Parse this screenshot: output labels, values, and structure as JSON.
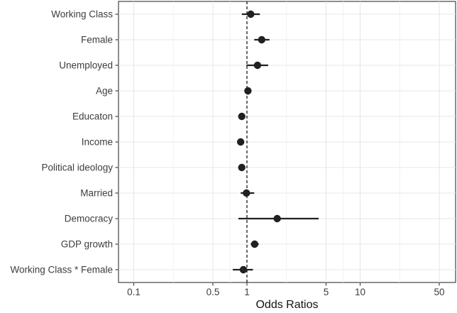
{
  "chart_data": {
    "type": "forest",
    "title": "",
    "xlabel": "Odds Ratios",
    "x_scale": "log10",
    "x_ticks": [
      0.1,
      0.5,
      1,
      5,
      10,
      50
    ],
    "x_tick_labels": [
      "0.1",
      "0.5",
      "1",
      "5",
      "10",
      "50"
    ],
    "x_minor_ticks": [
      0.2236,
      0.7071,
      2.2361,
      7.0711,
      22.3607
    ],
    "x_range": [
      0.073,
      69
    ],
    "reference_line": 1,
    "legend_position": "none",
    "grid": true,
    "rows": [
      {
        "label": "Working Class",
        "or": 1.08,
        "ci_low": 0.9,
        "ci_high": 1.3
      },
      {
        "label": "Female",
        "or": 1.35,
        "ci_low": 1.16,
        "ci_high": 1.58
      },
      {
        "label": "Unemployed",
        "or": 1.24,
        "ci_low": 0.99,
        "ci_high": 1.54
      },
      {
        "label": "Age",
        "or": 1.02,
        "ci_low": 0.97,
        "ci_high": 1.07
      },
      {
        "label": "Educaton",
        "or": 0.9,
        "ci_low": 0.86,
        "ci_high": 0.95
      },
      {
        "label": "Income",
        "or": 0.88,
        "ci_low": 0.85,
        "ci_high": 0.93
      },
      {
        "label": "Political ideology",
        "or": 0.9,
        "ci_low": 0.86,
        "ci_high": 0.95
      },
      {
        "label": "Married",
        "or": 0.99,
        "ci_low": 0.88,
        "ci_high": 1.16
      },
      {
        "label": "Democracy",
        "or": 1.85,
        "ci_low": 0.84,
        "ci_high": 4.3
      },
      {
        "label": "GDP growth",
        "or": 1.17,
        "ci_low": 1.08,
        "ci_high": 1.27
      },
      {
        "label": "Working Class * Female",
        "or": 0.93,
        "ci_low": 0.75,
        "ci_high": 1.13
      }
    ],
    "colors": {
      "point": "#212121",
      "ci_line": "#212121",
      "reference_line": "#1a1a1a",
      "grid_major": "#e7e7e7",
      "grid_minor": "#f0f0f0",
      "panel_border": "#424242",
      "tick_mark": "#333333",
      "axis_text": "#3d3d3d",
      "axis_title": "#111111",
      "background": "#ffffff"
    }
  }
}
